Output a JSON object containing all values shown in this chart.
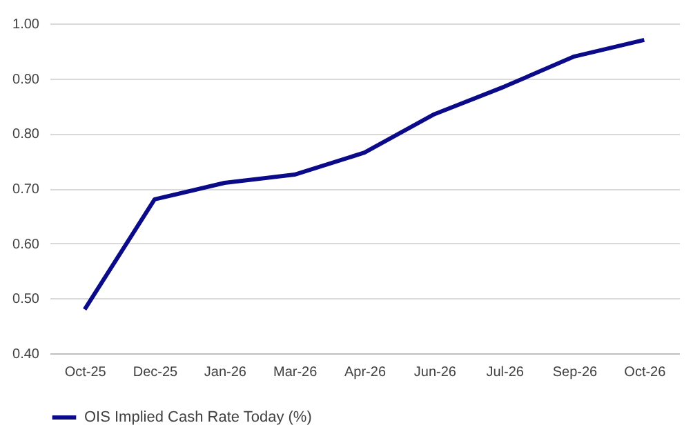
{
  "chart_data": {
    "type": "line",
    "categories": [
      "Oct-25",
      "Dec-25",
      "Jan-26",
      "Mar-26",
      "Apr-26",
      "Jun-26",
      "Jul-26",
      "Sep-26",
      "Oct-26"
    ],
    "series": [
      {
        "name": "OIS Implied Cash Rate Today (%)",
        "color": "#0b0b8a",
        "values": [
          0.48,
          0.68,
          0.71,
          0.725,
          0.765,
          0.835,
          0.885,
          0.94,
          0.97
        ]
      }
    ],
    "ylim": [
      0.4,
      1.0
    ],
    "yticks": [
      {
        "value": 0.4,
        "label": "0.40"
      },
      {
        "value": 0.5,
        "label": "0.50"
      },
      {
        "value": 0.6,
        "label": "0.60"
      },
      {
        "value": 0.7,
        "label": "0.70"
      },
      {
        "value": 0.8,
        "label": "0.80"
      },
      {
        "value": 0.9,
        "label": "0.90"
      },
      {
        "value": 1.0,
        "label": "1.00"
      }
    ],
    "grid": "y",
    "legend": "bottom",
    "marker": "none",
    "line_style": "solid"
  }
}
